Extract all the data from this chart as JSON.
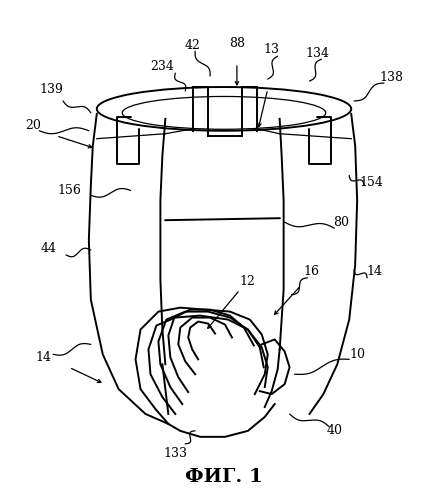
{
  "title": "ФИГ. 1",
  "title_fontsize": 14,
  "background_color": "#ffffff",
  "line_color": "#000000",
  "lw_main": 1.4,
  "lw_thin": 0.9
}
